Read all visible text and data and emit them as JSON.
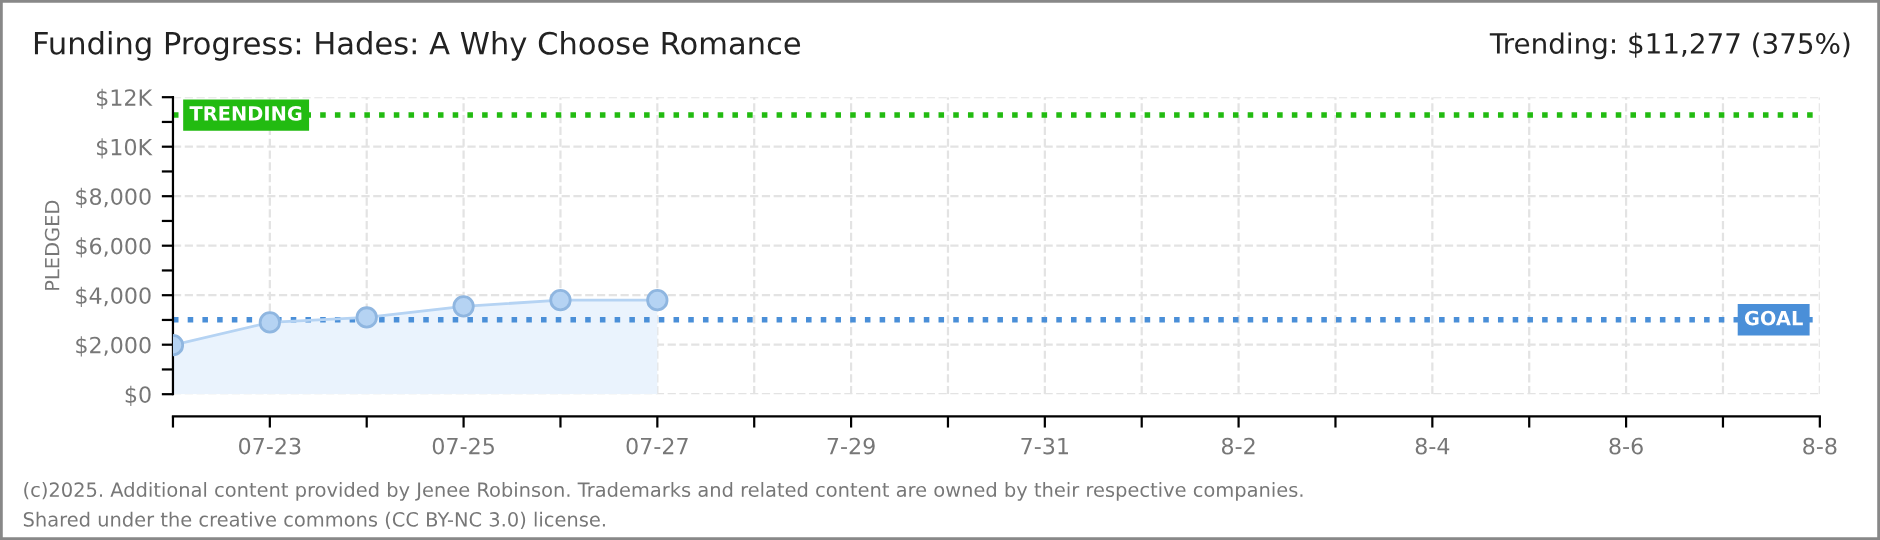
{
  "chart_data": {
    "type": "area",
    "title": "Funding Progress: Hades: A Why Choose Romance",
    "subtitle": "Trending: $11,277 (375%)",
    "ylabel": "PLEDGED",
    "x": [
      "2025-07-22",
      "2025-07-23",
      "2025-07-24",
      "2025-07-25",
      "2025-07-26",
      "2025-07-27"
    ],
    "series": [
      {
        "color": "#b5d3f3",
        "values": [
          1980,
          2900,
          3100,
          3550,
          3800,
          3800
        ]
      }
    ],
    "marker": "circle",
    "line_style": "solid",
    "grid": true,
    "legend": false,
    "xlim": [
      "2025-07-22",
      "2025-08-08"
    ],
    "xticks": [
      {
        "value": "2025-07-22",
        "label": null
      },
      {
        "value": "2025-07-23",
        "label": "07-23"
      },
      {
        "value": "2025-07-24",
        "label": null
      },
      {
        "value": "2025-07-25",
        "label": "07-25"
      },
      {
        "value": "2025-07-26",
        "label": null
      },
      {
        "value": "2025-07-27",
        "label": "07-27"
      },
      {
        "value": "2025-07-28",
        "label": null
      },
      {
        "value": "2025-07-29",
        "label": "7-29"
      },
      {
        "value": "2025-07-30",
        "label": null
      },
      {
        "value": "2025-07-31",
        "label": "7-31"
      },
      {
        "value": "2025-08-01",
        "label": null
      },
      {
        "value": "2025-08-02",
        "label": "8-2"
      },
      {
        "value": "2025-08-03",
        "label": null
      },
      {
        "value": "2025-08-04",
        "label": "8-4"
      },
      {
        "value": "2025-08-05",
        "label": null
      },
      {
        "value": "2025-08-06",
        "label": "8-6"
      },
      {
        "value": "2025-08-07",
        "label": null
      },
      {
        "value": "2025-08-08",
        "label": "8-8"
      }
    ],
    "ylim": [
      0,
      12000
    ],
    "yticks": [
      {
        "value": 0,
        "label": "$0"
      },
      {
        "value": 1000,
        "label": null
      },
      {
        "value": 2000,
        "label": "$2,000"
      },
      {
        "value": 3000,
        "label": null
      },
      {
        "value": 4000,
        "label": "$4,000"
      },
      {
        "value": 5000,
        "label": null
      },
      {
        "value": 6000,
        "label": "$6,000"
      },
      {
        "value": 7000,
        "label": null
      },
      {
        "value": 8000,
        "label": "$8,000"
      },
      {
        "value": 9000,
        "label": null
      },
      {
        "value": 10000,
        "label": "$10K"
      },
      {
        "value": 11000,
        "label": null
      },
      {
        "value": 12000,
        "label": "$12K"
      }
    ],
    "ref_lines": [
      {
        "axis": "y",
        "value": 11277,
        "label": "TRENDING",
        "color": "#22bb11",
        "line_style": "dotted"
      },
      {
        "axis": "y",
        "value": 3007,
        "label": "GOAL",
        "color": "#4a8fd8",
        "line_style": "dotted"
      }
    ],
    "annotations": [
      "(c)2025. Additional content provided by Jenee Robinson. Trademarks and related content are owned by their respective companies.",
      "Shared under the creative commons (CC BY-NC 3.0) license."
    ]
  }
}
